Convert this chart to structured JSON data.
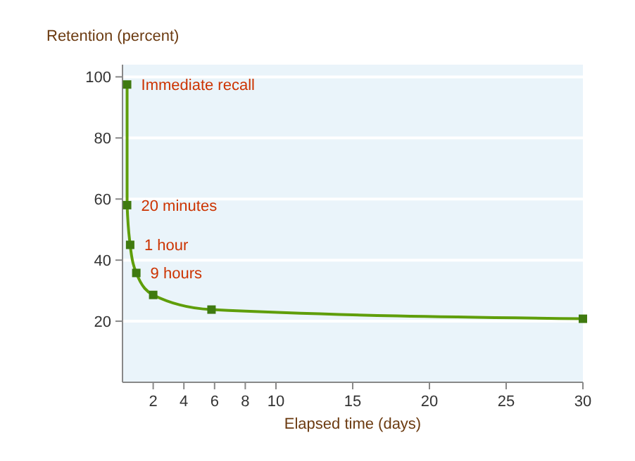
{
  "chart_data": {
    "type": "line",
    "ylabel": "Retention (percent)",
    "xlabel": "Elapsed time (days)",
    "x": [
      0.3,
      0.3,
      0.5,
      0.9,
      2,
      5.8,
      30
    ],
    "series": [
      {
        "color": "#5f9e0a",
        "values": [
          97.5,
          58,
          45,
          35.8,
          28.6,
          23.8,
          20.8
        ]
      }
    ],
    "xlim": [
      0,
      30
    ],
    "xticks": [
      2,
      4,
      6,
      8,
      10,
      15,
      20,
      25,
      30
    ],
    "ylim": [
      0,
      104
    ],
    "yticks": [
      20,
      40,
      60,
      80,
      100
    ],
    "grid": "y",
    "marker": "square",
    "line_style": "solid",
    "annotations": [
      {
        "text": "Immediate recall",
        "x": 0.3,
        "y": 97.5
      },
      {
        "text": "20 minutes",
        "x": 0.3,
        "y": 58
      },
      {
        "text": "1 hour",
        "x": 0.5,
        "y": 45
      },
      {
        "text": "9 hours",
        "x": 0.9,
        "y": 35.8
      }
    ]
  }
}
